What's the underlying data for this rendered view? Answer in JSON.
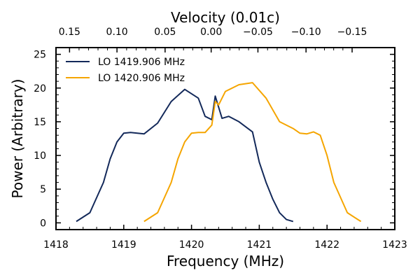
{
  "chart_data": {
    "type": "line",
    "title": "Velocity (0.01c)",
    "xlabel": "Frequency (MHz)",
    "ylabel": "Power (Arbitrary)",
    "xlim": [
      1418,
      1423
    ],
    "ylim": [
      -1,
      26
    ],
    "x_ticks": [
      1418,
      1419,
      1420,
      1421,
      1422,
      1423
    ],
    "y_ticks": [
      0,
      5,
      10,
      15,
      20,
      25
    ],
    "top_axis": {
      "label": "Velocity (0.01c)",
      "ticks": [
        {
          "label": "0.15",
          "freq": 1418.2
        },
        {
          "label": "0.10",
          "freq": 1418.9
        },
        {
          "label": "0.05",
          "freq": 1419.61
        },
        {
          "label": "0.00",
          "freq": 1420.29
        },
        {
          "label": "−0.05",
          "freq": 1420.98
        },
        {
          "label": "−0.10",
          "freq": 1421.69
        },
        {
          "label": "−0.15",
          "freq": 1422.37
        }
      ]
    },
    "grid": false,
    "legend_position": "top-left",
    "series": [
      {
        "name": "LO 1419.906 MHz",
        "color": "#13295a",
        "x": [
          1418.3,
          1418.5,
          1418.7,
          1418.8,
          1418.9,
          1419.0,
          1419.1,
          1419.3,
          1419.5,
          1419.7,
          1419.9,
          1420.1,
          1420.2,
          1420.3,
          1420.35,
          1420.45,
          1420.55,
          1420.7,
          1420.9,
          1421.0,
          1421.1,
          1421.2,
          1421.3,
          1421.4,
          1421.5
        ],
        "values": [
          0.2,
          1.5,
          6.0,
          9.5,
          12.0,
          13.3,
          13.4,
          13.2,
          14.8,
          18.0,
          19.8,
          18.5,
          15.8,
          15.3,
          18.8,
          15.5,
          15.8,
          15.0,
          13.5,
          9.0,
          6.0,
          3.5,
          1.5,
          0.5,
          0.2
        ]
      },
      {
        "name": "LO 1420.906 MHz",
        "color": "#f5a500",
        "x": [
          1419.3,
          1419.5,
          1419.7,
          1419.8,
          1419.9,
          1420.0,
          1420.1,
          1420.2,
          1420.3,
          1420.35,
          1420.4,
          1420.5,
          1420.7,
          1420.9,
          1421.1,
          1421.3,
          1421.5,
          1421.6,
          1421.7,
          1421.8,
          1421.9,
          1422.0,
          1422.1,
          1422.3,
          1422.5
        ],
        "values": [
          0.2,
          1.5,
          6.0,
          9.5,
          12.0,
          13.3,
          13.4,
          13.4,
          14.5,
          18.0,
          17.5,
          19.5,
          20.5,
          20.8,
          18.5,
          15.0,
          14.0,
          13.3,
          13.2,
          13.5,
          13.0,
          10.0,
          6.0,
          1.5,
          0.2
        ]
      }
    ]
  }
}
